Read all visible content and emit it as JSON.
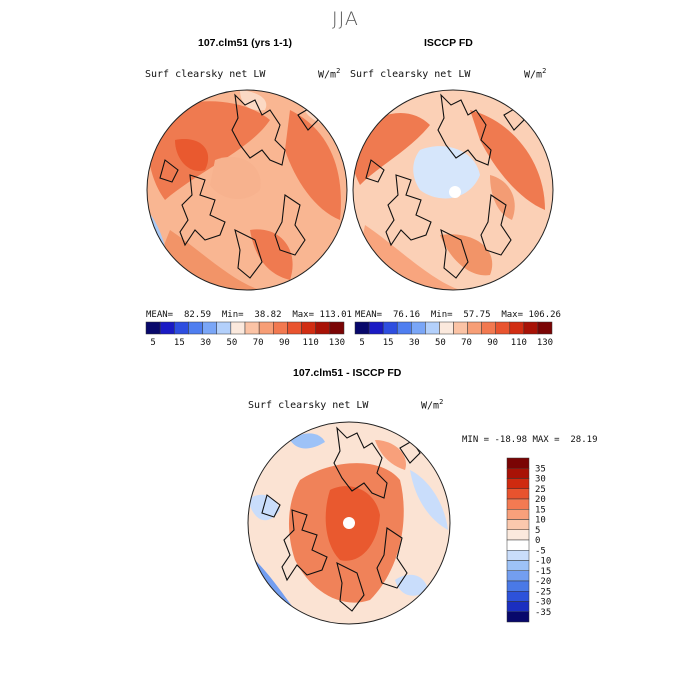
{
  "season": "JJA",
  "panels": [
    {
      "title": "107.clm51 (yrs 1-1)",
      "var_label": "Surf clearsky net LW",
      "units": "W/m",
      "units_exp": "2",
      "stats": {
        "mean_label": "MEAN=",
        "mean": "82.59",
        "min_label": "Min=",
        "min": "38.82",
        "max_label": "Max=",
        "max": "113.01"
      }
    },
    {
      "title": "ISCCP FD",
      "var_label": "Surf clearsky net LW",
      "units": "W/m",
      "units_exp": "2",
      "stats": {
        "mean_label": "MEAN=",
        "mean": "76.16",
        "min_label": "Min=",
        "min": "57.75",
        "max_label": "Max=",
        "max": "106.26"
      }
    },
    {
      "title": "107.clm51 - ISCCP FD",
      "var_label": "Surf clearsky net LW",
      "units": "W/m",
      "units_exp": "2",
      "stats": {
        "min_label": "MIN =",
        "min": "-18.98",
        "max_label": "MAX =",
        "max": "28.19"
      }
    }
  ],
  "colorbar_abs": {
    "colors": [
      "#08086b",
      "#1a1ac4",
      "#2e4ee0",
      "#4f7ef0",
      "#7aa6f7",
      "#b3d0fb",
      "#fbe9dd",
      "#fbc3a5",
      "#f79e76",
      "#f27950",
      "#e9542f",
      "#d12d12",
      "#a81206",
      "#7a0404"
    ],
    "tick_labels": [
      "5",
      "15",
      "30",
      "50",
      "70",
      "90",
      "110",
      "130"
    ]
  },
  "colorbar_diff": {
    "colors": [
      "#7a0404",
      "#a81206",
      "#cf2a10",
      "#e8532e",
      "#f37a52",
      "#f8a07b",
      "#fbc8ad",
      "#fbe9dd",
      "#ffffff",
      "#c9ddfb",
      "#9dc2f7",
      "#739ef0",
      "#4a79e6",
      "#2d52da",
      "#1b2fc0",
      "#08086b"
    ],
    "tick_labels": [
      "35",
      "30",
      "25",
      "20",
      "15",
      "10",
      "5",
      "0",
      "-5",
      "-10",
      "-15",
      "-20",
      "-25",
      "-30",
      "-35"
    ]
  },
  "chart_data": [
    {
      "type": "heatmap",
      "title": "107.clm51 (yrs 1-1)",
      "subtitle": "Surf clearsky net LW",
      "units": "W/m^2",
      "projection": "north polar stereographic",
      "mean": 82.59,
      "min": 38.82,
      "max": 113.01,
      "contour_levels": [
        5,
        15,
        30,
        50,
        70,
        90,
        110,
        130
      ]
    },
    {
      "type": "heatmap",
      "title": "ISCCP FD",
      "subtitle": "Surf clearsky net LW",
      "units": "W/m^2",
      "projection": "north polar stereographic",
      "mean": 76.16,
      "min": 57.75,
      "max": 106.26,
      "contour_levels": [
        5,
        15,
        30,
        50,
        70,
        90,
        110,
        130
      ]
    },
    {
      "type": "heatmap",
      "title": "107.clm51 - ISCCP FD",
      "subtitle": "Surf clearsky net LW",
      "units": "W/m^2",
      "projection": "north polar stereographic",
      "min": -18.98,
      "max": 28.19,
      "contour_levels": [
        -35,
        -30,
        -25,
        -20,
        -15,
        -10,
        -5,
        0,
        5,
        10,
        15,
        20,
        25,
        30,
        35
      ]
    }
  ]
}
